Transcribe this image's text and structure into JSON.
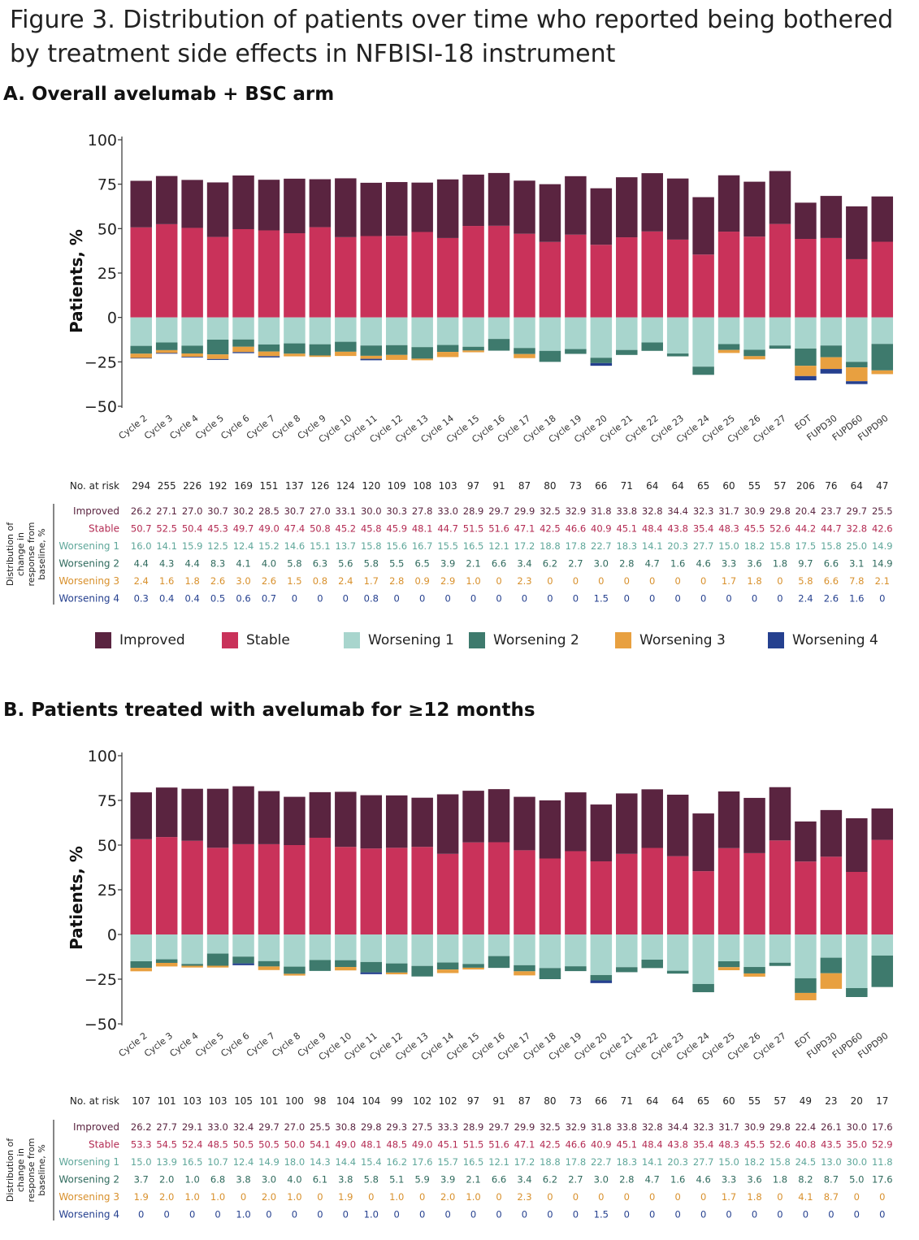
{
  "figure": {
    "title_line1": "Figure 3. Distribution of patients over time who reported being bothered",
    "title_line2": "by treatment side effects in NFBISI-18 instrument"
  },
  "series_colors": {
    "Improved": "#5a2440",
    "Stable": "#c9325a",
    "Worsening 1": "#a8d5cd",
    "Worsening 2": "#3e7a6d",
    "Worsening 3": "#e8a040",
    "Worsening 4": "#25408f"
  },
  "legend": [
    {
      "label": "Improved",
      "color": "#5a2440"
    },
    {
      "label": "Stable",
      "color": "#c9325a"
    },
    {
      "label": "Worsening 1",
      "color": "#a8d5cd"
    },
    {
      "label": "Worsening 2",
      "color": "#3e7a6d"
    },
    {
      "label": "Worsening 3",
      "color": "#e8a040"
    },
    {
      "label": "Worsening 4",
      "color": "#25408f"
    }
  ],
  "chart_data": [
    {
      "type": "bar",
      "stacked": true,
      "title": "A. Overall avelumab + BSC arm",
      "ylabel": "Patients, %",
      "ylim": [
        -50,
        100
      ],
      "yticks": [
        100,
        75,
        50,
        25,
        0,
        -25,
        -50
      ],
      "categories": [
        "Cycle 2",
        "Cycle 3",
        "Cycle 4",
        "Cycle 5",
        "Cycle 6",
        "Cycle 7",
        "Cycle 8",
        "Cycle 9",
        "Cycle 10",
        "Cycle 11",
        "Cycle 12",
        "Cycle 13",
        "Cycle 14",
        "Cycle 15",
        "Cycle 16",
        "Cycle 17",
        "Cycle 18",
        "Cycle 19",
        "Cycle 20",
        "Cycle 21",
        "Cycle 22",
        "Cycle 23",
        "Cycle 24",
        "Cycle 25",
        "Cycle 26",
        "Cycle 27",
        "EOT",
        "FUPD30",
        "FUPD60",
        "FUPD90"
      ],
      "at_risk_label": "No. at risk",
      "at_risk": [
        "294",
        "255",
        "226",
        "192",
        "169",
        "151",
        "137",
        "126",
        "124",
        "120",
        "109",
        "108",
        "103",
        "97",
        "91",
        "87",
        "80",
        "73",
        "66",
        "71",
        "64",
        "64",
        "65",
        "60",
        "55",
        "57",
        "206",
        "76",
        "64",
        "47"
      ],
      "table_axis_label": [
        "Distribution of",
        "change in",
        "response from",
        "baseline, %"
      ],
      "series": [
        {
          "name": "Improved",
          "values": [
            26.2,
            27.1,
            27.0,
            30.7,
            30.2,
            28.5,
            30.7,
            27.0,
            33.1,
            30.0,
            30.3,
            27.8,
            33.0,
            28.9,
            29.7,
            29.9,
            32.5,
            32.9,
            31.8,
            33.8,
            32.8,
            34.4,
            32.3,
            31.7,
            30.9,
            29.8,
            20.4,
            23.7,
            29.7,
            25.5
          ],
          "labels": [
            "26.2",
            "27.1",
            "27.0",
            "30.7",
            "30.2",
            "28.5",
            "30.7",
            "27.0",
            "33.1",
            "30.0",
            "30.3",
            "27.8",
            "33.0",
            "28.9",
            "29.7",
            "29.9",
            "32.5",
            "32.9",
            "31.8",
            "33.8",
            "32.8",
            "34.4",
            "32.3",
            "31.7",
            "30.9",
            "29.8",
            "20.4",
            "23.7",
            "29.7",
            "25.5"
          ]
        },
        {
          "name": "Stable",
          "values": [
            50.7,
            52.5,
            50.4,
            45.3,
            49.7,
            49.0,
            47.4,
            50.8,
            45.2,
            45.8,
            45.9,
            48.1,
            44.7,
            51.5,
            51.6,
            47.1,
            42.5,
            46.6,
            40.9,
            45.1,
            48.4,
            43.8,
            35.4,
            48.3,
            45.5,
            52.6,
            44.2,
            44.7,
            32.8,
            42.6
          ],
          "labels": [
            "50.7",
            "52.5",
            "50.4",
            "45.3",
            "49.7",
            "49.0",
            "47.4",
            "50.8",
            "45.2",
            "45.8",
            "45.9",
            "48.1",
            "44.7",
            "51.5",
            "51.6",
            "47.1",
            "42.5",
            "46.6",
            "40.9",
            "45.1",
            "48.4",
            "43.8",
            "35.4",
            "48.3",
            "45.5",
            "52.6",
            "44.2",
            "44.7",
            "32.8",
            "42.6"
          ]
        },
        {
          "name": "Worsening 1",
          "values": [
            16.0,
            14.1,
            15.9,
            12.5,
            12.4,
            15.2,
            14.6,
            15.1,
            13.7,
            15.8,
            15.6,
            16.7,
            15.5,
            16.5,
            12.1,
            17.2,
            18.8,
            17.8,
            22.7,
            18.3,
            14.1,
            20.3,
            27.7,
            15.0,
            18.2,
            15.8,
            17.5,
            15.8,
            25.0,
            14.9
          ],
          "labels": [
            "16.0",
            "14.1",
            "15.9",
            "12.5",
            "12.4",
            "15.2",
            "14.6",
            "15.1",
            "13.7",
            "15.8",
            "15.6",
            "16.7",
            "15.5",
            "16.5",
            "12.1",
            "17.2",
            "18.8",
            "17.8",
            "22.7",
            "18.3",
            "14.1",
            "20.3",
            "27.7",
            "15.0",
            "18.2",
            "15.8",
            "17.5",
            "15.8",
            "25.0",
            "14.9"
          ]
        },
        {
          "name": "Worsening 2",
          "values": [
            4.4,
            4.3,
            4.4,
            8.3,
            4.1,
            4.0,
            5.8,
            6.3,
            5.6,
            5.8,
            5.5,
            6.5,
            3.9,
            2.1,
            6.6,
            3.4,
            6.2,
            2.7,
            3.0,
            2.8,
            4.7,
            1.6,
            4.6,
            3.3,
            3.6,
            1.8,
            9.7,
            6.6,
            3.1,
            14.9
          ],
          "labels": [
            "4.4",
            "4.3",
            "4.4",
            "8.3",
            "4.1",
            "4.0",
            "5.8",
            "6.3",
            "5.6",
            "5.8",
            "5.5",
            "6.5",
            "3.9",
            "2.1",
            "6.6",
            "3.4",
            "6.2",
            "2.7",
            "3.0",
            "2.8",
            "4.7",
            "1.6",
            "4.6",
            "3.3",
            "3.6",
            "1.8",
            "9.7",
            "6.6",
            "3.1",
            "14.9"
          ]
        },
        {
          "name": "Worsening 3",
          "values": [
            2.4,
            1.6,
            1.8,
            2.6,
            3.0,
            2.6,
            1.5,
            0.8,
            2.4,
            1.7,
            2.8,
            0.9,
            2.9,
            1.0,
            0,
            2.3,
            0,
            0,
            0,
            0,
            0,
            0,
            0,
            1.7,
            1.8,
            0,
            5.8,
            6.6,
            7.8,
            2.1
          ],
          "labels": [
            "2.4",
            "1.6",
            "1.8",
            "2.6",
            "3.0",
            "2.6",
            "1.5",
            "0.8",
            "2.4",
            "1.7",
            "2.8",
            "0.9",
            "2.9",
            "1.0",
            "0",
            "2.3",
            "0",
            "0",
            "0",
            "0",
            "0",
            "0",
            "0",
            "1.7",
            "1.8",
            "0",
            "5.8",
            "6.6",
            "7.8",
            "2.1"
          ]
        },
        {
          "name": "Worsening 4",
          "values": [
            0.3,
            0.4,
            0.4,
            0.5,
            0.6,
            0.7,
            0,
            0,
            0,
            0.8,
            0,
            0,
            0,
            0,
            0,
            0,
            0,
            0,
            1.5,
            0,
            0,
            0,
            0,
            0,
            0,
            0,
            2.4,
            2.6,
            1.6,
            0
          ],
          "labels": [
            "0.3",
            "0.4",
            "0.4",
            "0.5",
            "0.6",
            "0.7",
            "0",
            "0",
            "0",
            "0.8",
            "0",
            "0",
            "0",
            "0",
            "0",
            "0",
            "0",
            "0",
            "1.5",
            "0",
            "0",
            "0",
            "0",
            "0",
            "0",
            "0",
            "2.4",
            "2.6",
            "1.6",
            "0"
          ]
        }
      ]
    },
    {
      "type": "bar",
      "stacked": true,
      "title": "B. Patients treated with avelumab for ≥12 months",
      "ylabel": "Patients, %",
      "ylim": [
        -50,
        100
      ],
      "yticks": [
        100,
        75,
        50,
        25,
        0,
        -25,
        -50
      ],
      "categories": [
        "Cycle 2",
        "Cycle 3",
        "Cycle 4",
        "Cycle 5",
        "Cycle 6",
        "Cycle 7",
        "Cycle 8",
        "Cycle 9",
        "Cycle 10",
        "Cycle 11",
        "Cycle 12",
        "Cycle 13",
        "Cycle 14",
        "Cycle 15",
        "Cycle 16",
        "Cycle 17",
        "Cycle 18",
        "Cycle 19",
        "Cycle 20",
        "Cycle 21",
        "Cycle 22",
        "Cycle 23",
        "Cycle 24",
        "Cycle 25",
        "Cycle 26",
        "Cycle 27",
        "EOT",
        "FUPD30",
        "FUPD60",
        "FUPD90"
      ],
      "at_risk_label": "No. at risk",
      "at_risk": [
        "107",
        "101",
        "103",
        "103",
        "105",
        "101",
        "100",
        "98",
        "104",
        "104",
        "99",
        "102",
        "102",
        "97",
        "91",
        "87",
        "80",
        "73",
        "66",
        "71",
        "64",
        "64",
        "65",
        "60",
        "55",
        "57",
        "49",
        "23",
        "20",
        "17"
      ],
      "table_axis_label": [
        "Distribution of",
        "change in",
        "response from",
        "baseline, %"
      ],
      "series": [
        {
          "name": "Improved",
          "values": [
            26.2,
            27.7,
            29.1,
            33.0,
            32.4,
            29.7,
            27.0,
            25.5,
            30.8,
            29.8,
            29.3,
            27.5,
            33.3,
            28.9,
            29.7,
            29.9,
            32.5,
            32.9,
            31.8,
            33.8,
            32.8,
            34.4,
            32.3,
            31.7,
            30.9,
            29.8,
            22.4,
            26.1,
            30.0,
            17.6
          ],
          "labels": [
            "26.2",
            "27.7",
            "29.1",
            "33.0",
            "32.4",
            "29.7",
            "27.0",
            "25.5",
            "30.8",
            "29.8",
            "29.3",
            "27.5",
            "33.3",
            "28.9",
            "29.7",
            "29.9",
            "32.5",
            "32.9",
            "31.8",
            "33.8",
            "32.8",
            "34.4",
            "32.3",
            "31.7",
            "30.9",
            "29.8",
            "22.4",
            "26.1",
            "30.0",
            "17.6"
          ]
        },
        {
          "name": "Stable",
          "values": [
            53.3,
            54.5,
            52.4,
            48.5,
            50.5,
            50.5,
            50.0,
            54.1,
            49.0,
            48.1,
            48.5,
            49.0,
            45.1,
            51.5,
            51.6,
            47.1,
            42.5,
            46.6,
            40.9,
            45.1,
            48.4,
            43.8,
            35.4,
            48.3,
            45.5,
            52.6,
            40.8,
            43.5,
            35.0,
            52.9
          ],
          "labels": [
            "53.3",
            "54.5",
            "52.4",
            "48.5",
            "50.5",
            "50.5",
            "50.0",
            "54.1",
            "49.0",
            "48.1",
            "48.5",
            "49.0",
            "45.1",
            "51.5",
            "51.6",
            "47.1",
            "42.5",
            "46.6",
            "40.9",
            "45.1",
            "48.4",
            "43.8",
            "35.4",
            "48.3",
            "45.5",
            "52.6",
            "40.8",
            "43.5",
            "35.0",
            "52.9"
          ]
        },
        {
          "name": "Worsening 1",
          "values": [
            15.0,
            13.9,
            16.5,
            10.7,
            12.4,
            14.9,
            18.0,
            14.3,
            14.4,
            15.4,
            16.2,
            17.6,
            15.7,
            16.5,
            12.1,
            17.2,
            18.8,
            17.8,
            22.7,
            18.3,
            14.1,
            20.3,
            27.7,
            15.0,
            18.2,
            15.8,
            24.5,
            13.0,
            30.0,
            11.8
          ],
          "labels": [
            "15.0",
            "13.9",
            "16.5",
            "10.7",
            "12.4",
            "14.9",
            "18.0",
            "14.3",
            "14.4",
            "15.4",
            "16.2",
            "17.6",
            "15.7",
            "16.5",
            "12.1",
            "17.2",
            "18.8",
            "17.8",
            "22.7",
            "18.3",
            "14.1",
            "20.3",
            "27.7",
            "15.0",
            "18.2",
            "15.8",
            "24.5",
            "13.0",
            "30.0",
            "11.8"
          ]
        },
        {
          "name": "Worsening 2",
          "values": [
            3.7,
            2.0,
            1.0,
            6.8,
            3.8,
            3.0,
            4.0,
            6.1,
            3.8,
            5.8,
            5.1,
            5.9,
            3.9,
            2.1,
            6.6,
            3.4,
            6.2,
            2.7,
            3.0,
            2.8,
            4.7,
            1.6,
            4.6,
            3.3,
            3.6,
            1.8,
            8.2,
            8.7,
            5.0,
            17.6
          ],
          "labels": [
            "3.7",
            "2.0",
            "1.0",
            "6.8",
            "3.8",
            "3.0",
            "4.0",
            "6.1",
            "3.8",
            "5.8",
            "5.1",
            "5.9",
            "3.9",
            "2.1",
            "6.6",
            "3.4",
            "6.2",
            "2.7",
            "3.0",
            "2.8",
            "4.7",
            "1.6",
            "4.6",
            "3.3",
            "3.6",
            "1.8",
            "8.2",
            "8.7",
            "5.0",
            "17.6"
          ]
        },
        {
          "name": "Worsening 3",
          "values": [
            1.9,
            2.0,
            1.0,
            1.0,
            0,
            2.0,
            1.0,
            0,
            1.9,
            0,
            1.0,
            0,
            2.0,
            1.0,
            0,
            2.3,
            0,
            0,
            0,
            0,
            0,
            0,
            0,
            1.7,
            1.8,
            0,
            4.1,
            8.7,
            0,
            0
          ],
          "labels": [
            "1.9",
            "2.0",
            "1.0",
            "1.0",
            "0",
            "2.0",
            "1.0",
            "0",
            "1.9",
            "0",
            "1.0",
            "0",
            "2.0",
            "1.0",
            "0",
            "2.3",
            "0",
            "0",
            "0",
            "0",
            "0",
            "0",
            "0",
            "1.7",
            "1.8",
            "0",
            "4.1",
            "8.7",
            "0",
            "0"
          ]
        },
        {
          "name": "Worsening 4",
          "values": [
            0,
            0,
            0,
            0,
            1.0,
            0,
            0,
            0,
            0,
            1.0,
            0,
            0,
            0,
            0,
            0,
            0,
            0,
            0,
            1.5,
            0,
            0,
            0,
            0,
            0,
            0,
            0,
            0,
            0,
            0,
            0
          ],
          "labels": [
            "0",
            "0",
            "0",
            "0",
            "1.0",
            "0",
            "0",
            "0",
            "0",
            "1.0",
            "0",
            "0",
            "0",
            "0",
            "0",
            "0",
            "0",
            "0",
            "1.5",
            "0",
            "0",
            "0",
            "0",
            "0",
            "0",
            "0",
            "0",
            "0",
            "0",
            "0"
          ]
        }
      ]
    }
  ]
}
